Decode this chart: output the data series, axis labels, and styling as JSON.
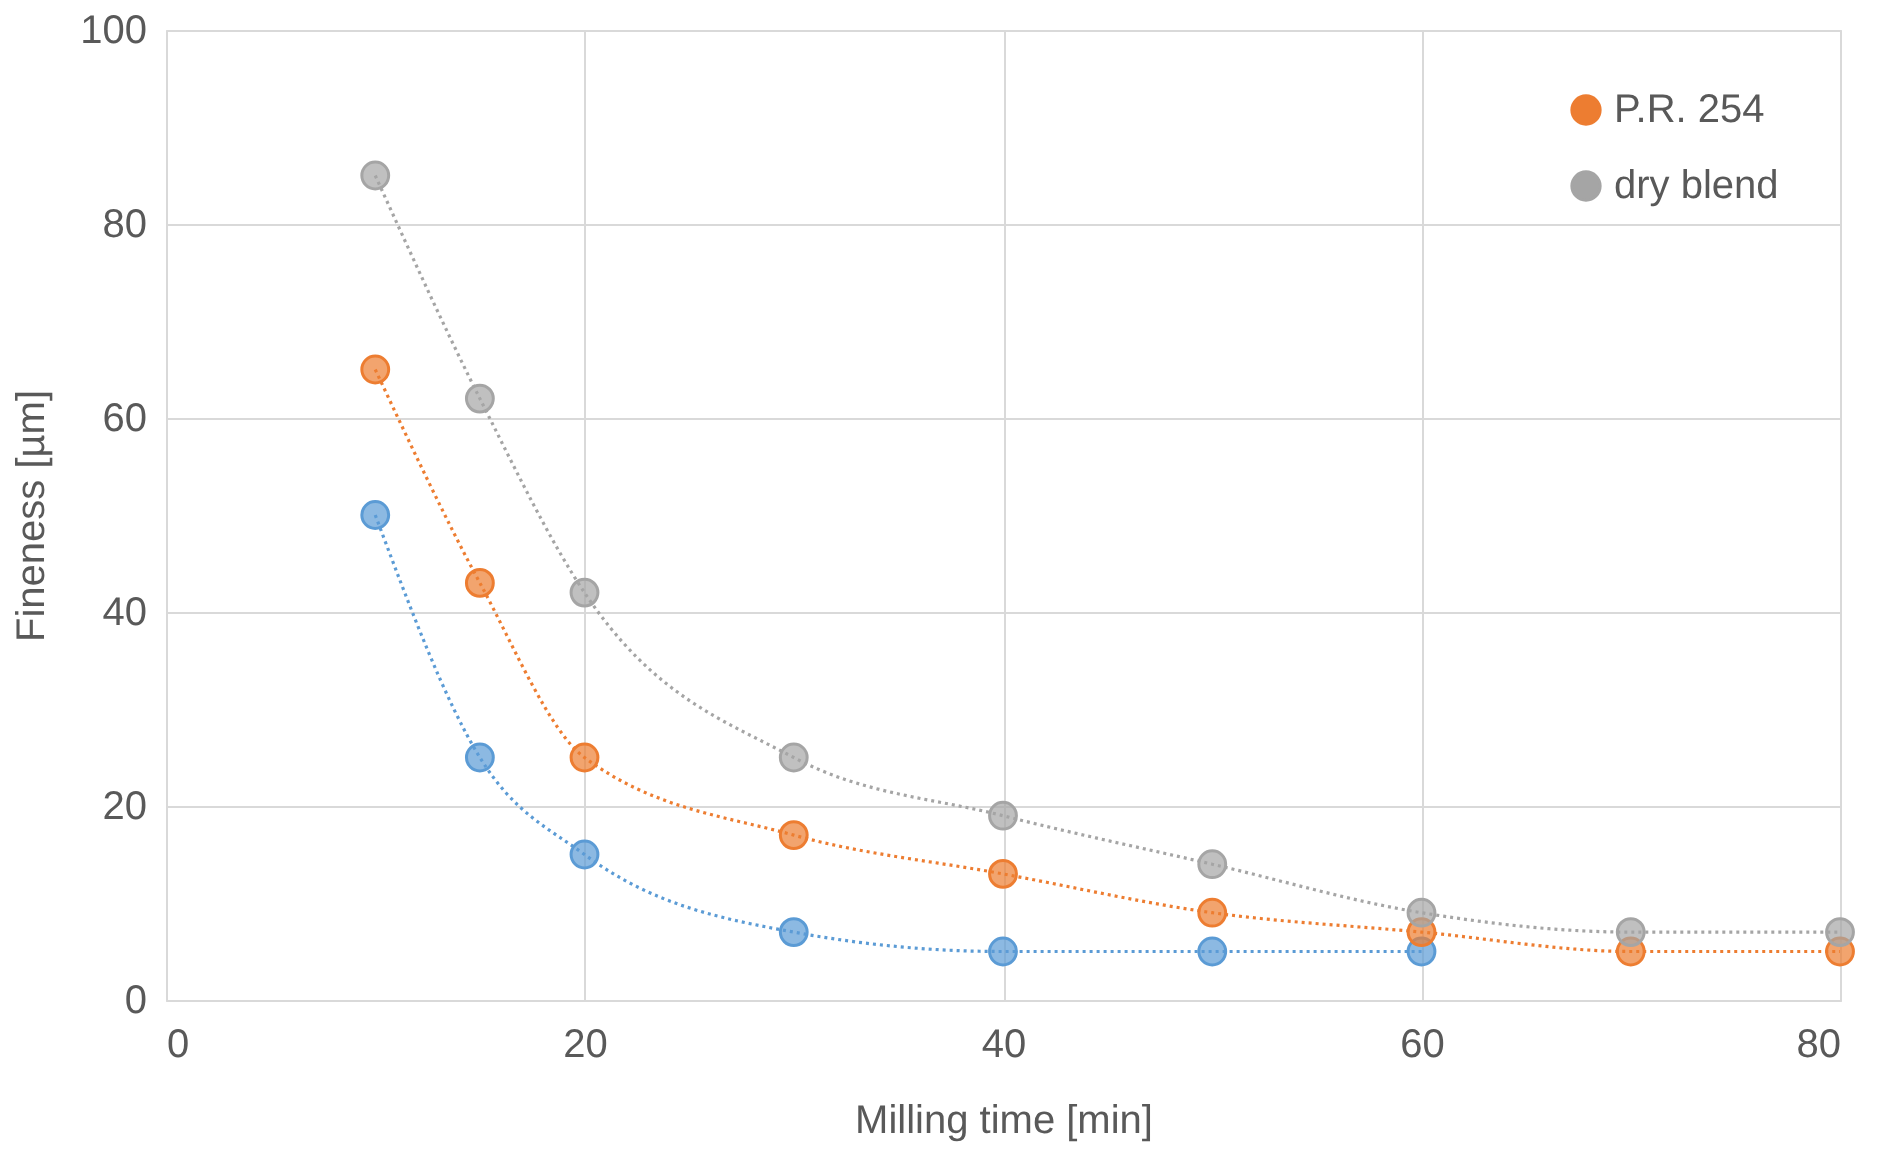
{
  "chart_data": {
    "type": "line",
    "xlabel": "Milling time [min]",
    "ylabel": "Fineness [µm]",
    "x": [
      10,
      15,
      20,
      30,
      40,
      50,
      60,
      70,
      80
    ],
    "xlim": [
      0,
      80
    ],
    "xticks": [
      0,
      20,
      40,
      60,
      80
    ],
    "ylim": [
      0,
      100
    ],
    "yticks": [
      0,
      20,
      40,
      60,
      80,
      100
    ],
    "grid": true,
    "legend": "top right",
    "marker": "circle",
    "line_style": "dotted",
    "series": [
      {
        "color": "#5b9bd5",
        "values": [
          50,
          25,
          15,
          7,
          5,
          5,
          5,
          null,
          null
        ]
      },
      {
        "name": "P.R. 254",
        "color": "#ed7d31",
        "values": [
          65,
          43,
          25,
          17,
          13,
          9,
          7,
          5,
          5
        ]
      },
      {
        "name": "dry blend",
        "color": "#a5a5a5",
        "values": [
          85,
          62,
          42,
          25,
          19,
          14,
          9,
          7,
          7
        ]
      }
    ]
  }
}
